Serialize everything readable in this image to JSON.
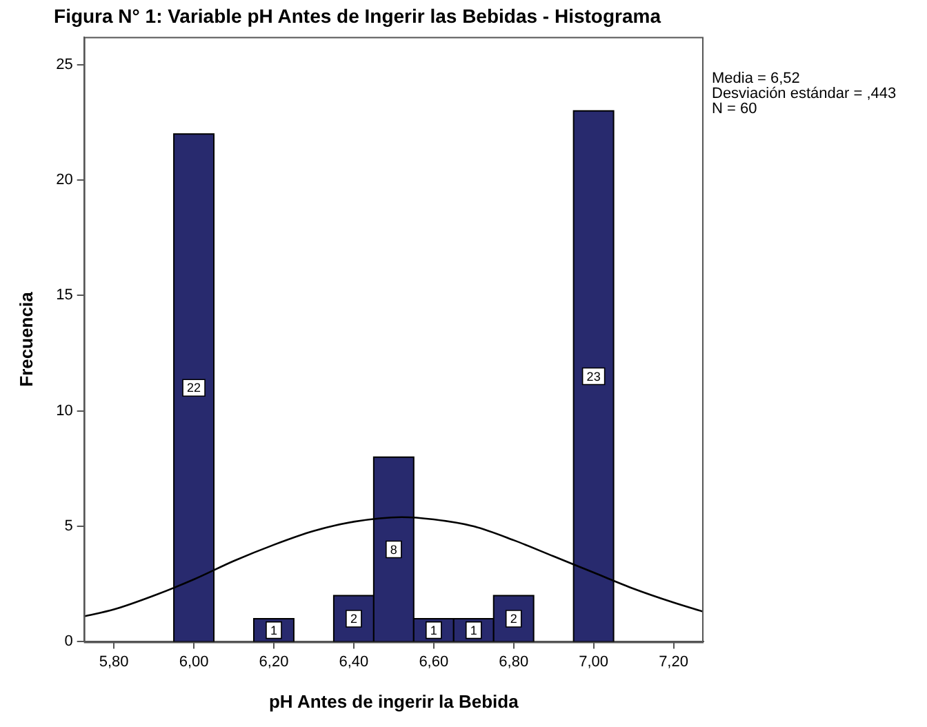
{
  "chart_data": {
    "type": "histogram",
    "title": "Figura N° 1: Variable pH Antes de Ingerir las Bebidas - Histograma",
    "xlabel": "pH Antes de ingerir la Bebida",
    "ylabel": "Frecuencia",
    "bins": [
      5.95,
      6.05,
      6.15,
      6.25,
      6.35,
      6.45,
      6.55,
      6.65,
      6.75,
      6.85,
      6.95,
      7.05
    ],
    "values": [
      22,
      0,
      1,
      0,
      2,
      8,
      1,
      1,
      2,
      0,
      23
    ],
    "value_labels": [
      "22",
      null,
      "1",
      null,
      "2",
      "8",
      "1",
      "1",
      "2",
      null,
      "23"
    ],
    "color": "#282a6e",
    "series": [
      {
        "type": "line",
        "color": "#000000",
        "x": [
          5.725,
          5.8,
          5.9,
          6.0,
          6.1,
          6.2,
          6.3,
          6.4,
          6.52,
          6.6,
          6.7,
          6.8,
          6.9,
          7.0,
          7.1,
          7.2,
          7.275
        ],
        "values": [
          1.1,
          1.4,
          2.0,
          2.7,
          3.5,
          4.2,
          4.8,
          5.2,
          5.4,
          5.3,
          5.0,
          4.4,
          3.7,
          3.0,
          2.3,
          1.7,
          1.3
        ]
      }
    ],
    "xlim": [
      5.725,
      7.275
    ],
    "xticks": [
      {
        "value": 5.8,
        "label": "5,80"
      },
      {
        "value": 6.0,
        "label": "6,00"
      },
      {
        "value": 6.2,
        "label": "6,20"
      },
      {
        "value": 6.4,
        "label": "6,40"
      },
      {
        "value": 6.6,
        "label": "6,60"
      },
      {
        "value": 6.8,
        "label": "6,80"
      },
      {
        "value": 7.0,
        "label": "7,00"
      },
      {
        "value": 7.2,
        "label": "7,20"
      }
    ],
    "ylim": [
      0,
      26.2
    ],
    "yticks": [
      0,
      5,
      10,
      15,
      20,
      25
    ],
    "grid": false,
    "legend": false,
    "marker": "none",
    "annotations": [
      "Media = 6,52",
      "Desviación estándar = ,443",
      "N = 60"
    ]
  }
}
